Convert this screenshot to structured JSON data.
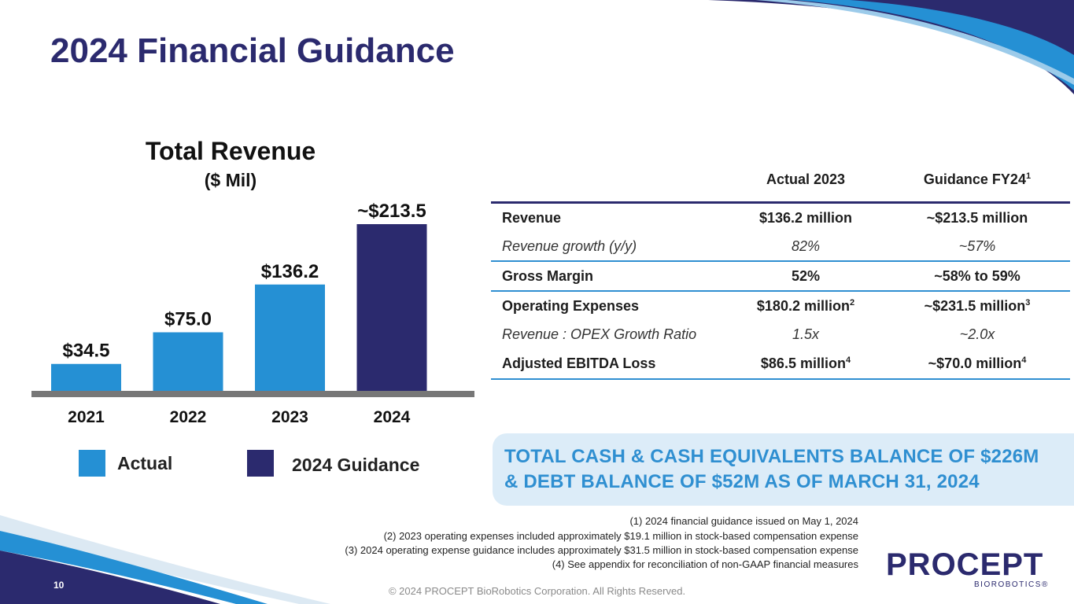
{
  "title": "2024 Financial Guidance",
  "chart_data": {
    "type": "bar",
    "title": "Total Revenue",
    "subtitle": "($ Mil)",
    "categories": [
      "2021",
      "2022",
      "2023",
      "2024"
    ],
    "values": [
      34.5,
      75.0,
      136.2,
      213.5
    ],
    "data_labels": [
      "$34.5",
      "$75.0",
      "$136.2",
      "~$213.5"
    ],
    "series_types": [
      "actual",
      "actual",
      "actual",
      "guidance"
    ],
    "ylim": [
      0,
      213.5
    ],
    "legend": [
      {
        "label": "Actual",
        "color": "#2590d4"
      },
      {
        "label": "2024 Guidance",
        "color": "#2b2a6e"
      }
    ]
  },
  "table": {
    "headers": [
      "",
      "Actual 2023",
      "Guidance FY24"
    ],
    "header_sup": "1",
    "rows": [
      {
        "label": "Revenue",
        "actual": "$136.2 million",
        "actual_sup": "",
        "guidance": "~$213.5 million",
        "guidance_sup": ""
      },
      {
        "label": "Revenue growth (y/y)",
        "actual": "82%",
        "actual_sup": "",
        "guidance": "~57%",
        "guidance_sup": ""
      },
      {
        "label": "Gross Margin",
        "actual": "52%",
        "actual_sup": "",
        "guidance": "~58% to 59%",
        "guidance_sup": ""
      },
      {
        "label": "Operating Expenses",
        "actual": "$180.2 million",
        "actual_sup": "2",
        "guidance": "~$231.5 million",
        "guidance_sup": "3"
      },
      {
        "label": "Revenue : OPEX Growth Ratio",
        "actual": "1.5x",
        "actual_sup": "",
        "guidance": "~2.0x",
        "guidance_sup": ""
      },
      {
        "label": "Adjusted EBITDA Loss",
        "actual": "$86.5 million",
        "actual_sup": "4",
        "guidance": "~$70.0 million",
        "guidance_sup": "4"
      }
    ]
  },
  "cash": {
    "line1": "TOTAL CASH & CASH EQUIVALENTS BALANCE OF $226M",
    "line2": "& DEBT BALANCE OF $52M AS OF MARCH 31, 2024"
  },
  "footnotes": [
    "(1)    2024 financial guidance issued on May 1, 2024",
    "(2)    2023 operating expenses included approximately $19.1 million in stock-based compensation expense",
    "(3)    2024 operating expense guidance includes approximately $31.5 million in stock-based compensation expense",
    "(4)    See appendix for reconciliation of non-GAAP financial measures"
  ],
  "page_number": "10",
  "copyright": "© 2024 PROCEPT BioRobotics Corporation. All Rights Reserved.",
  "logo": {
    "name": "PROCEPT",
    "sub": "BIOROBOTICS®"
  },
  "colors": {
    "navy": "#2b2a6e",
    "blue": "#2590d4",
    "light_blue": "#dcecf8",
    "axis_gray": "#777777"
  }
}
